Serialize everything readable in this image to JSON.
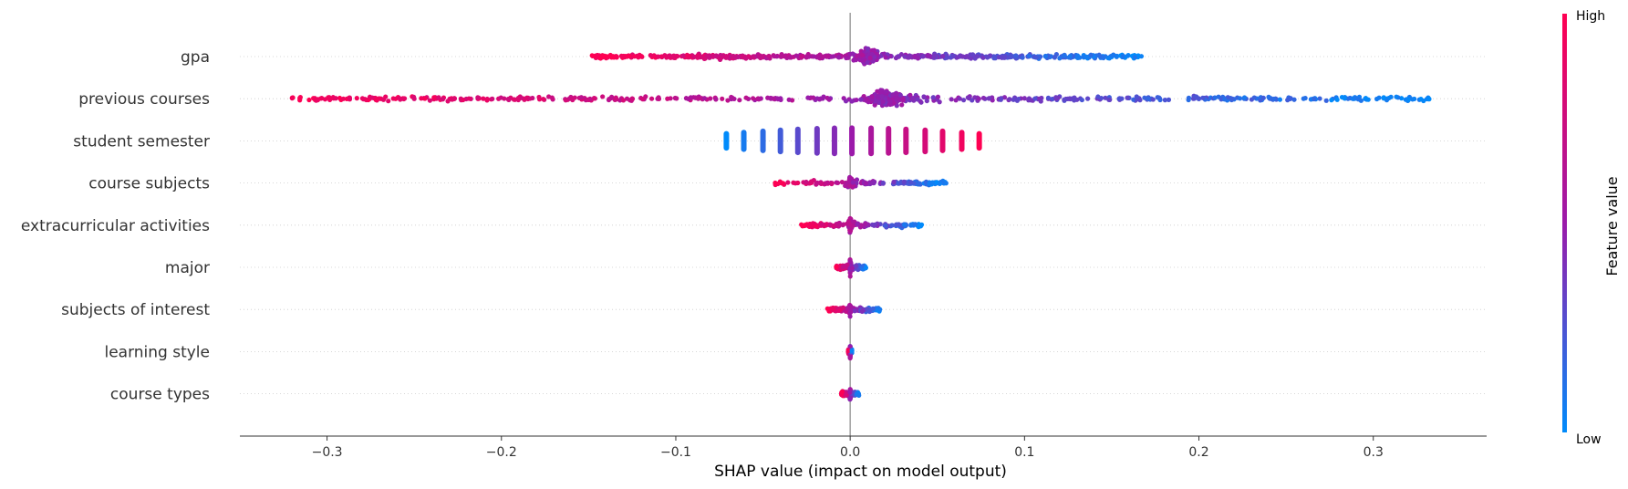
{
  "chart_data": {
    "type": "scatter",
    "subtype": "shap-beeswarm",
    "title": "",
    "xlabel": "SHAP value (impact on model output)",
    "xlim": [
      -0.35,
      0.365
    ],
    "xticks": [
      -0.3,
      -0.2,
      -0.1,
      0.0,
      0.1,
      0.2,
      0.3
    ],
    "xtick_labels": [
      "−0.3",
      "−0.2",
      "−0.1",
      "0.0",
      "0.1",
      "0.2",
      "0.3"
    ],
    "features": [
      {
        "name": "gpa",
        "min": -0.148,
        "max": 0.167,
        "center": 0.01,
        "low_value_side": "positive"
      },
      {
        "name": "previous courses",
        "min": -0.32,
        "max": 0.332,
        "center": 0.02,
        "low_value_side": "positive"
      },
      {
        "name": "student semester",
        "discrete_values": [
          -0.071,
          -0.061,
          -0.05,
          -0.04,
          -0.03,
          -0.019,
          -0.009,
          0.001,
          0.012,
          0.022,
          0.032,
          0.043,
          0.053,
          0.064,
          0.074
        ],
        "low_value_side": "negative"
      },
      {
        "name": "course subjects",
        "min": -0.043,
        "max": 0.055,
        "center": 0.0,
        "low_value_side": "positive"
      },
      {
        "name": "extracurricular activities",
        "min": -0.028,
        "max": 0.041,
        "center": 0.0,
        "low_value_side": "positive"
      },
      {
        "name": "major",
        "min": -0.008,
        "max": 0.009,
        "center": 0.0,
        "low_value_side": "positive"
      },
      {
        "name": "subjects of interest",
        "min": -0.013,
        "max": 0.017,
        "center": 0.0,
        "low_value_side": "positive"
      },
      {
        "name": "learning style",
        "min": -0.001,
        "max": 0.001,
        "center": 0.0,
        "low_value_side": "positive"
      },
      {
        "name": "course types",
        "min": -0.005,
        "max": 0.005,
        "center": 0.0,
        "low_value_side": "positive"
      }
    ],
    "colorbar": {
      "label": "Feature value",
      "high_label": "High",
      "low_label": "Low",
      "low_color": "#008bfb",
      "mid_color": "#9b1aaa",
      "high_color": "#ff0052"
    },
    "zero_line_color": "#999999",
    "grid": false
  }
}
